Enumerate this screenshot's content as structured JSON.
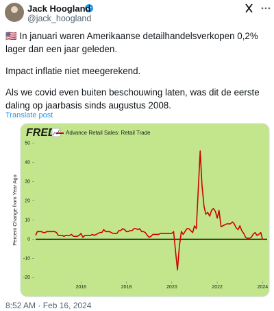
{
  "header": {
    "name": "Jack Hoogland",
    "handle": "@jack_hoogland"
  },
  "post": {
    "paragraphs": [
      "🇺🇸 In januari waren Amerikaanse detailhandelsverkopen 0,2% lager dan een jaar geleden.",
      "Impact inflatie niet meegerekend.",
      "Als we covid even buiten beschouwing laten, was dit de eerste daling op jaarbasis sinds augustus 2008."
    ],
    "translate": "Translate post",
    "timestamp": "8:52 AM · Feb 16, 2024"
  },
  "chart_data": {
    "type": "line",
    "logo": "FRED",
    "y_label": "Percent Change from Year Ago",
    "x": [
      2014,
      2014.08,
      2014.17,
      2014.25,
      2014.33,
      2014.42,
      2014.5,
      2014.58,
      2014.67,
      2014.75,
      2014.83,
      2014.92,
      2015,
      2015.08,
      2015.17,
      2015.25,
      2015.33,
      2015.42,
      2015.5,
      2015.58,
      2015.67,
      2015.75,
      2015.83,
      2015.92,
      2016,
      2016.08,
      2016.17,
      2016.25,
      2016.33,
      2016.42,
      2016.5,
      2016.58,
      2016.67,
      2016.75,
      2016.83,
      2016.92,
      2017,
      2017.08,
      2017.17,
      2017.25,
      2017.33,
      2017.42,
      2017.5,
      2017.58,
      2017.67,
      2017.75,
      2017.83,
      2017.92,
      2018,
      2018.08,
      2018.17,
      2018.25,
      2018.33,
      2018.42,
      2018.5,
      2018.58,
      2018.67,
      2018.75,
      2018.83,
      2018.92,
      2019,
      2019.08,
      2019.17,
      2019.25,
      2019.33,
      2019.42,
      2019.5,
      2019.58,
      2019.67,
      2019.75,
      2019.83,
      2019.92,
      2020,
      2020.08,
      2020.17,
      2020.25,
      2020.33,
      2020.42,
      2020.5,
      2020.58,
      2020.67,
      2020.75,
      2020.83,
      2020.92,
      2021,
      2021.08,
      2021.17,
      2021.25,
      2021.33,
      2021.42,
      2021.5,
      2021.58,
      2021.67,
      2021.75,
      2021.83,
      2021.92,
      2022,
      2022.08,
      2022.17,
      2022.25,
      2022.33,
      2022.42,
      2022.5,
      2022.58,
      2022.67,
      2022.75,
      2022.83,
      2022.92,
      2023,
      2023.08,
      2023.17,
      2023.25,
      2023.33,
      2023.42,
      2023.5,
      2023.58,
      2023.67,
      2023.75,
      2023.83,
      2023.92,
      2024
    ],
    "series": [
      {
        "name": "Advance Retail Sales: Retail Trade",
        "color": "#cc0000",
        "values": [
          2,
          4,
          4,
          4,
          3.5,
          3.5,
          4,
          4,
          4,
          4,
          4,
          3.5,
          2,
          2,
          2,
          1.5,
          2,
          2,
          2,
          2.5,
          1.5,
          1.5,
          1.5,
          2,
          3,
          1,
          2,
          2,
          2,
          2,
          2.5,
          2,
          2.5,
          3,
          3.5,
          3.5,
          5,
          4,
          4,
          4,
          3.5,
          3,
          3,
          3,
          4.5,
          4.5,
          5.5,
          5,
          4,
          4,
          4.5,
          4.5,
          5.5,
          5.5,
          5,
          5.5,
          4,
          4,
          3.5,
          2,
          1,
          1.5,
          2.5,
          2.5,
          2.5,
          2.5,
          3,
          3,
          3,
          3,
          3,
          3,
          3,
          4,
          -7,
          -16,
          -4,
          4,
          2.5,
          4,
          5.5,
          5.5,
          4.5,
          3.5,
          7,
          5.5,
          27,
          46,
          28,
          17,
          13,
          14,
          12,
          15,
          16,
          14.5,
          11,
          15,
          6.5,
          7,
          7.5,
          8,
          8,
          8,
          9,
          8,
          6,
          5,
          7,
          4.5,
          3,
          1,
          0.5,
          0.5,
          1,
          2.5,
          3.5,
          2,
          2.5,
          3.5,
          -0.2
        ]
      }
    ],
    "xlim": [
      2014,
      2024.2
    ],
    "xticks": [
      2016,
      2018,
      2020,
      2022,
      2024
    ],
    "ylim": [
      -22,
      52
    ],
    "yticks": [
      50,
      40,
      30,
      20,
      10,
      0,
      -10,
      -20
    ],
    "grid": false
  }
}
